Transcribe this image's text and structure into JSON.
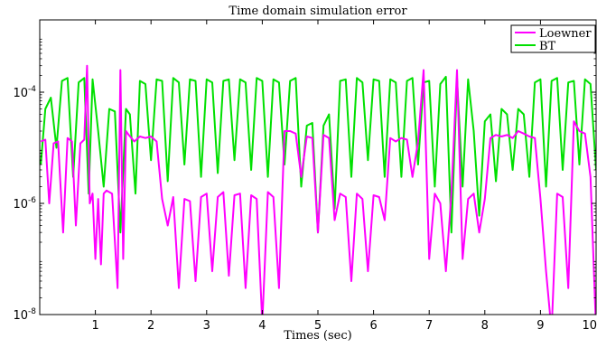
{
  "chart_data": {
    "type": "line",
    "title": "Time domain simulation error",
    "xlabel": "Times (sec)",
    "ylabel": "",
    "xlim": [
      0,
      10
    ],
    "ylim": [
      1e-08,
      0.002
    ],
    "yscale": "log",
    "grid": false,
    "legend_position": "top-right",
    "x_ticks": [
      {
        "value": 1,
        "label": "1"
      },
      {
        "value": 2,
        "label": "2"
      },
      {
        "value": 3,
        "label": "3"
      },
      {
        "value": 4,
        "label": "4"
      },
      {
        "value": 5,
        "label": "5"
      },
      {
        "value": 6,
        "label": "6"
      },
      {
        "value": 7,
        "label": "7"
      },
      {
        "value": 8,
        "label": "8"
      },
      {
        "value": 9,
        "label": "9"
      },
      {
        "value": 10,
        "label": "10"
      }
    ],
    "y_ticks": [
      {
        "value": 1e-08,
        "base": "10",
        "exp": "-8"
      },
      {
        "value": 1e-06,
        "base": "10",
        "exp": "-6"
      },
      {
        "value": 0.0001,
        "base": "10",
        "exp": "-4"
      }
    ],
    "series": [
      {
        "name": "Loewner",
        "color": "#ff00ff",
        "x": [
          0.02,
          0.1,
          0.17,
          0.25,
          0.33,
          0.42,
          0.5,
          0.58,
          0.65,
          0.73,
          0.8,
          0.85,
          0.9,
          0.95,
          1.0,
          1.05,
          1.1,
          1.15,
          1.2,
          1.3,
          1.4,
          1.45,
          1.5,
          1.55,
          1.6,
          1.7,
          1.8,
          1.9,
          2.0,
          2.1,
          2.2,
          2.3,
          2.4,
          2.5,
          2.6,
          2.7,
          2.8,
          2.9,
          3.0,
          3.1,
          3.2,
          3.3,
          3.4,
          3.5,
          3.6,
          3.7,
          3.8,
          3.9,
          4.0,
          4.1,
          4.2,
          4.3,
          4.4,
          4.5,
          4.6,
          4.7,
          4.8,
          4.9,
          5.0,
          5.1,
          5.2,
          5.3,
          5.4,
          5.5,
          5.6,
          5.7,
          5.8,
          5.9,
          6.0,
          6.1,
          6.2,
          6.3,
          6.4,
          6.5,
          6.6,
          6.7,
          6.8,
          6.9,
          7.0,
          7.1,
          7.2,
          7.3,
          7.4,
          7.5,
          7.6,
          7.7,
          7.8,
          7.9,
          8.0,
          8.1,
          8.2,
          8.3,
          8.4,
          8.5,
          8.6,
          8.7,
          8.8,
          8.9,
          9.0,
          9.1,
          9.2,
          9.3,
          9.4,
          9.5,
          9.6,
          9.7,
          9.8,
          9.9,
          10.0
        ],
        "values": [
          1.3e-05,
          1.4e-05,
          1e-06,
          1.2e-05,
          1.3e-05,
          3e-07,
          1.5e-05,
          1.3e-05,
          4e-07,
          1.2e-05,
          1.4e-05,
          0.0003,
          1e-06,
          1.5e-06,
          1e-07,
          1.2e-06,
          8e-08,
          1.5e-06,
          1.7e-06,
          1.5e-06,
          3e-08,
          0.00025,
          1e-07,
          2e-05,
          1.7e-05,
          1.3e-05,
          1.6e-05,
          1.5e-05,
          1.6e-05,
          1.3e-05,
          1.2e-06,
          4e-07,
          1.3e-06,
          3e-08,
          1.2e-06,
          1.1e-06,
          4e-08,
          1.3e-06,
          1.5e-06,
          6e-08,
          1.3e-06,
          1.6e-06,
          5e-08,
          1.4e-06,
          1.5e-06,
          3e-08,
          1.4e-06,
          1.2e-06,
          7e-09,
          1.6e-06,
          1.3e-06,
          3e-08,
          2e-05,
          2e-05,
          1.8e-05,
          3e-06,
          1.6e-05,
          1.5e-05,
          3e-07,
          1.7e-05,
          1.5e-05,
          5e-07,
          1.5e-06,
          1.3e-06,
          4e-08,
          1.5e-06,
          1.2e-06,
          6e-08,
          1.4e-06,
          1.3e-06,
          5e-07,
          1.5e-05,
          1.3e-05,
          1.5e-05,
          1.4e-05,
          3e-06,
          1.3e-05,
          0.00025,
          1e-07,
          1.5e-06,
          1e-06,
          6e-08,
          1.5e-06,
          0.00025,
          1e-07,
          1.2e-06,
          1.5e-06,
          3e-07,
          1.2e-06,
          1.5e-05,
          1.7e-05,
          1.6e-05,
          1.7e-05,
          1.5e-05,
          2e-05,
          1.8e-05,
          1.6e-05,
          1.5e-05,
          1.2e-06,
          6e-08,
          4e-09,
          1.5e-06,
          1.3e-06,
          3e-08,
          3e-05,
          2e-05,
          1.8e-05,
          3e-06,
          5e-09
        ]
      },
      {
        "name": "BT",
        "color": "#00e000",
        "x": [
          0.02,
          0.1,
          0.2,
          0.3,
          0.4,
          0.5,
          0.6,
          0.7,
          0.8,
          0.88,
          0.95,
          1.05,
          1.15,
          1.25,
          1.35,
          1.45,
          1.55,
          1.62,
          1.72,
          1.8,
          1.9,
          2.0,
          2.1,
          2.2,
          2.3,
          2.4,
          2.5,
          2.6,
          2.7,
          2.8,
          2.9,
          3.0,
          3.1,
          3.2,
          3.3,
          3.4,
          3.5,
          3.6,
          3.7,
          3.8,
          3.9,
          4.0,
          4.1,
          4.2,
          4.3,
          4.4,
          4.5,
          4.6,
          4.7,
          4.8,
          4.9,
          5.0,
          5.1,
          5.2,
          5.3,
          5.4,
          5.5,
          5.6,
          5.7,
          5.8,
          5.9,
          6.0,
          6.1,
          6.2,
          6.3,
          6.4,
          6.5,
          6.6,
          6.7,
          6.8,
          6.9,
          7.0,
          7.1,
          7.2,
          7.3,
          7.4,
          7.5,
          7.6,
          7.7,
          7.8,
          7.9,
          8.0,
          8.1,
          8.2,
          8.3,
          8.4,
          8.5,
          8.6,
          8.7,
          8.8,
          8.9,
          9.0,
          9.1,
          9.2,
          9.3,
          9.4,
          9.5,
          9.6,
          9.7,
          9.8,
          9.9,
          10.0
        ],
        "values": [
          5e-06,
          5e-05,
          8e-05,
          1e-05,
          0.00016,
          0.00018,
          3e-06,
          0.00015,
          0.00018,
          1.5e-06,
          0.00017,
          2e-05,
          2e-06,
          5e-05,
          4.5e-05,
          3e-07,
          5e-05,
          4e-05,
          1.5e-06,
          0.00016,
          0.00014,
          6e-06,
          0.00017,
          0.00016,
          2.5e-06,
          0.00018,
          0.00015,
          5e-06,
          0.00017,
          0.00016,
          3e-06,
          0.00017,
          0.00015,
          3.5e-06,
          0.00016,
          0.00017,
          6e-06,
          0.00017,
          0.00015,
          4e-06,
          0.00018,
          0.00016,
          3e-06,
          0.00017,
          0.00015,
          5e-06,
          0.00016,
          0.00018,
          2e-06,
          2.5e-05,
          2.8e-05,
          3e-07,
          2.5e-05,
          4e-05,
          8e-07,
          0.00016,
          0.00017,
          3e-06,
          0.00018,
          0.00015,
          6e-06,
          0.00017,
          0.00016,
          3e-06,
          0.00017,
          0.00015,
          3e-06,
          0.00016,
          0.00018,
          5e-06,
          0.00015,
          0.00016,
          2e-06,
          0.00014,
          0.00019,
          3e-07,
          0.00018,
          2e-06,
          0.00017,
          2e-05,
          6e-07,
          3e-05,
          4e-05,
          2.5e-06,
          5e-05,
          4e-05,
          4e-06,
          5e-05,
          4e-05,
          3e-06,
          0.00015,
          0.00017,
          2e-06,
          0.00016,
          0.00018,
          4e-06,
          0.00015,
          0.00016,
          5e-06,
          0.00017,
          0.00014,
          4e-06
        ]
      }
    ]
  }
}
